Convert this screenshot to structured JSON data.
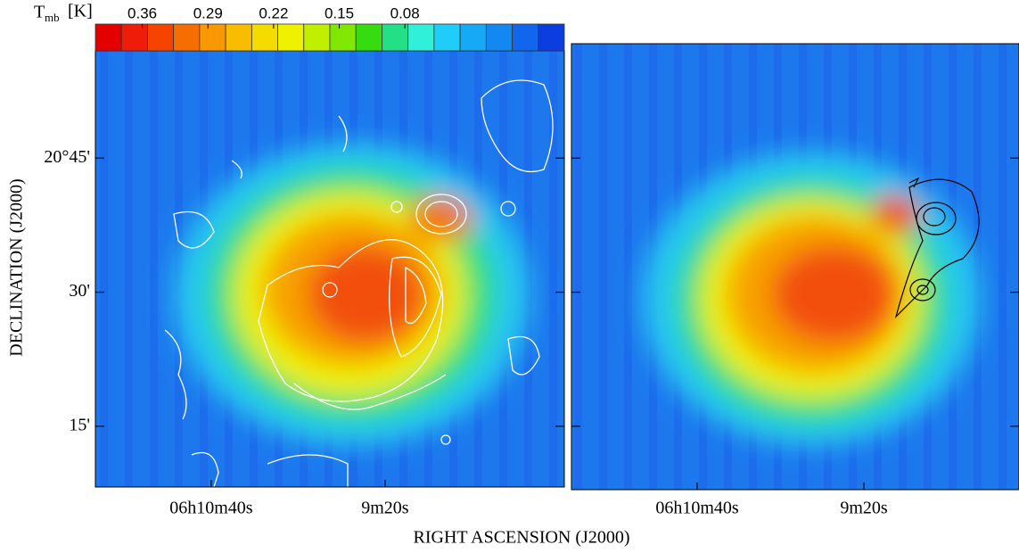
{
  "chart_data": [
    {
      "type": "image",
      "ylabel": "DECLINATION (J2000)",
      "colorbar_label": {
        "symbol": "T",
        "subscript": "mb",
        "unit": "[K]"
      },
      "clim": [
        0.41,
        -0.09
      ],
      "cticks": [
        0.36,
        0.29,
        0.22,
        0.15,
        0.08
      ],
      "colorbar_colors": [
        "#e50000",
        "#f01c0a",
        "#f54400",
        "#f76e00",
        "#f99800",
        "#f8bc00",
        "#f5dc00",
        "#eef200",
        "#c0f000",
        "#80e800",
        "#34dc10",
        "#22e086",
        "#30f0da",
        "#20ccf8",
        "#14aaf6",
        "#1288f0",
        "#1266ee",
        "#0a3ee0"
      ],
      "xlim": [
        693.3,
        477.5
      ],
      "xticks": [
        {
          "value": 640,
          "label": "06h10m40s"
        },
        {
          "value": 560,
          "label": "9m20s"
        }
      ],
      "ylim": [
        8.2,
        57
      ],
      "yticks": [
        {
          "value": 45,
          "label": "20°45'"
        },
        {
          "value": 30,
          "label": "30'"
        },
        {
          "value": 15,
          "label": "15'"
        }
      ]
    },
    {
      "type": "image",
      "xlim": [
        700.3,
        485.6
      ],
      "xticks": [
        {
          "value": 640,
          "label": "06h10m40s"
        },
        {
          "value": 560,
          "label": "9m20s"
        }
      ],
      "ylim": [
        7.9,
        57.8
      ],
      "yticks": [
        45,
        30,
        15
      ]
    }
  ],
  "xlabel": "RIGHT ASCENSION (J2000)"
}
